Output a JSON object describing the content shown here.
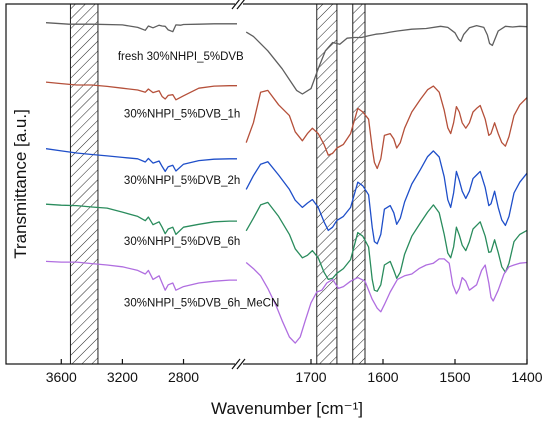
{
  "chart_data": {
    "type": "line",
    "xlabel": "Wavenumber [cm⁻¹]",
    "ylabel": "Transmittance [a.u.]",
    "x_axis_reversed": true,
    "broken_axis": true,
    "panels": [
      {
        "xlim": [
          3700,
          2450
        ],
        "ticks": [
          3600,
          3200,
          2800
        ]
      },
      {
        "xlim": [
          1800,
          1400
        ],
        "ticks": [
          1700,
          1600,
          1500,
          1400
        ]
      }
    ],
    "ylim": [
      0,
      10
    ],
    "y_ticks_shown": false,
    "hatched_bands": [
      {
        "from": 3540,
        "to": 3360
      },
      {
        "from": 1692,
        "to": 1664
      },
      {
        "from": 1642,
        "to": 1625
      }
    ],
    "series": [
      {
        "name": "fresh 30%NHPI_5%DVB",
        "color": "#5f5f5f",
        "x": [
          3700,
          3550,
          3400,
          3200,
          3100,
          3050,
          3030,
          3000,
          2960,
          2940,
          2920,
          2900,
          2870,
          2850,
          2820,
          2800,
          2700,
          2600,
          2500,
          2450,
          1790,
          1780,
          1760,
          1740,
          1730,
          1720,
          1712,
          1700,
          1690,
          1680,
          1670,
          1660,
          1650,
          1640,
          1630,
          1620,
          1610,
          1600,
          1590,
          1580,
          1560,
          1540,
          1520,
          1510,
          1500,
          1495,
          1492,
          1488,
          1480,
          1470,
          1460,
          1455,
          1452,
          1448,
          1440,
          1430,
          1420,
          1410,
          1400
        ],
        "y": [
          9.48,
          9.44,
          9.44,
          9.42,
          9.35,
          9.27,
          9.39,
          9.34,
          9.41,
          9.39,
          9.38,
          9.28,
          9.23,
          9.42,
          9.41,
          9.43,
          9.44,
          9.45,
          9.45,
          9.45,
          9.22,
          9.1,
          8.7,
          8.2,
          7.9,
          7.6,
          7.5,
          7.65,
          8.2,
          8.7,
          8.93,
          8.88,
          9.05,
          9.07,
          9.07,
          9.12,
          9.16,
          9.18,
          9.22,
          9.25,
          9.3,
          9.32,
          9.38,
          9.35,
          9.2,
          9.02,
          8.96,
          9.15,
          9.34,
          9.4,
          9.35,
          9.14,
          8.9,
          8.85,
          9.25,
          9.38,
          9.36,
          9.38,
          9.37
        ]
      },
      {
        "name": "30%NHPI_5%DVB_1h",
        "color": "#b5503a",
        "x": [
          3700,
          3600,
          3500,
          3400,
          3300,
          3200,
          3100,
          3050,
          3030,
          3000,
          2960,
          2940,
          2920,
          2900,
          2870,
          2850,
          2800,
          2700,
          2600,
          2500,
          2450,
          1790,
          1780,
          1770,
          1760,
          1745,
          1730,
          1722,
          1712,
          1705,
          1698,
          1690,
          1682,
          1676,
          1670,
          1664,
          1655,
          1645,
          1635,
          1628,
          1620,
          1615,
          1612,
          1608,
          1603,
          1598,
          1590,
          1585,
          1581,
          1576,
          1570,
          1560,
          1548,
          1538,
          1530,
          1522,
          1515,
          1510,
          1506,
          1502,
          1498,
          1494,
          1490,
          1485,
          1480,
          1475,
          1470,
          1465,
          1458,
          1453,
          1450,
          1445,
          1440,
          1435,
          1430,
          1425,
          1418,
          1410,
          1400
        ],
        "y": [
          7.83,
          7.79,
          7.75,
          7.75,
          7.71,
          7.66,
          7.61,
          7.55,
          7.64,
          7.54,
          7.59,
          7.43,
          7.36,
          7.46,
          7.48,
          7.34,
          7.45,
          7.66,
          7.72,
          7.73,
          7.73,
          6.15,
          6.7,
          7.55,
          7.6,
          7.2,
          6.9,
          6.45,
          6.2,
          6.4,
          6.55,
          6.4,
          6.1,
          5.8,
          5.85,
          6.0,
          6.1,
          6.4,
          7.1,
          7.0,
          6.8,
          6.0,
          5.6,
          5.43,
          5.7,
          6.35,
          6.4,
          6.25,
          6.0,
          6.15,
          6.55,
          7.0,
          7.35,
          7.62,
          7.72,
          7.55,
          7.05,
          6.56,
          6.4,
          6.7,
          7.15,
          7.0,
          6.7,
          6.55,
          6.7,
          7.0,
          7.1,
          7.18,
          6.8,
          6.35,
          6.4,
          6.7,
          6.4,
          6.15,
          6.05,
          6.32,
          6.9,
          7.2,
          7.4
        ]
      },
      {
        "name": "30%NHPI_5%DVB_2h",
        "color": "#1f4fc9",
        "x": [
          3700,
          3600,
          3500,
          3400,
          3300,
          3200,
          3100,
          3050,
          3030,
          3000,
          2960,
          2940,
          2920,
          2900,
          2870,
          2850,
          2800,
          2700,
          2600,
          2500,
          2450,
          1790,
          1780,
          1770,
          1760,
          1745,
          1730,
          1722,
          1712,
          1705,
          1698,
          1690,
          1682,
          1676,
          1670,
          1664,
          1655,
          1645,
          1635,
          1628,
          1620,
          1615,
          1612,
          1608,
          1603,
          1598,
          1590,
          1585,
          1581,
          1576,
          1570,
          1560,
          1548,
          1538,
          1530,
          1522,
          1515,
          1510,
          1506,
          1502,
          1498,
          1494,
          1490,
          1485,
          1480,
          1475,
          1470,
          1465,
          1458,
          1453,
          1450,
          1445,
          1440,
          1435,
          1430,
          1425,
          1418,
          1410,
          1400
        ],
        "y": [
          5.98,
          5.92,
          5.86,
          5.82,
          5.78,
          5.74,
          5.7,
          5.61,
          5.71,
          5.58,
          5.64,
          5.49,
          5.35,
          5.48,
          5.52,
          5.36,
          5.55,
          5.65,
          5.69,
          5.7,
          5.7,
          4.85,
          5.23,
          5.55,
          5.62,
          5.25,
          4.85,
          4.55,
          4.35,
          4.47,
          4.57,
          4.35,
          3.95,
          3.71,
          3.8,
          3.99,
          4.1,
          4.35,
          5.05,
          4.95,
          4.7,
          3.8,
          3.4,
          3.34,
          3.6,
          4.3,
          4.4,
          4.2,
          3.88,
          4.05,
          4.5,
          5.0,
          5.4,
          5.76,
          5.92,
          5.75,
          5.2,
          4.56,
          4.35,
          4.75,
          5.35,
          5.1,
          4.8,
          4.6,
          4.8,
          5.15,
          5.25,
          5.35,
          4.9,
          4.4,
          4.45,
          4.8,
          4.35,
          4.0,
          3.85,
          4.1,
          4.75,
          5.05,
          5.3
        ]
      },
      {
        "name": "30%NHPI_5%DVB_6h",
        "color": "#2a8c5d",
        "x": [
          3700,
          3600,
          3500,
          3400,
          3300,
          3200,
          3100,
          3050,
          3030,
          3000,
          2960,
          2940,
          2920,
          2900,
          2870,
          2850,
          2800,
          2700,
          2600,
          2500,
          2450,
          1790,
          1780,
          1770,
          1760,
          1745,
          1730,
          1722,
          1712,
          1705,
          1698,
          1690,
          1682,
          1676,
          1670,
          1664,
          1655,
          1645,
          1635,
          1628,
          1620,
          1615,
          1612,
          1608,
          1603,
          1598,
          1590,
          1585,
          1581,
          1576,
          1570,
          1560,
          1548,
          1538,
          1530,
          1522,
          1515,
          1510,
          1506,
          1502,
          1498,
          1494,
          1490,
          1485,
          1480,
          1475,
          1470,
          1465,
          1458,
          1453,
          1450,
          1445,
          1440,
          1435,
          1430,
          1425,
          1418,
          1410,
          1400
        ],
        "y": [
          4.44,
          4.41,
          4.4,
          4.36,
          4.33,
          4.22,
          4.1,
          3.98,
          4.08,
          3.87,
          3.95,
          3.8,
          3.62,
          3.75,
          3.8,
          3.6,
          3.8,
          3.88,
          3.95,
          3.97,
          3.97,
          3.7,
          4.05,
          4.42,
          4.49,
          4.1,
          3.6,
          3.2,
          2.95,
          3.02,
          3.15,
          2.95,
          2.55,
          2.35,
          2.38,
          2.52,
          2.65,
          2.9,
          3.65,
          3.55,
          3.25,
          2.35,
          2.05,
          2.02,
          2.2,
          2.75,
          2.85,
          2.6,
          2.38,
          2.55,
          3.05,
          3.55,
          3.92,
          4.22,
          4.42,
          4.2,
          3.6,
          3.08,
          2.95,
          3.25,
          3.8,
          3.58,
          3.3,
          3.15,
          3.4,
          3.75,
          3.85,
          3.95,
          3.55,
          3.1,
          3.12,
          3.45,
          3.1,
          2.7,
          2.55,
          2.8,
          3.4,
          3.6,
          3.71
        ]
      },
      {
        "name": "30%NHPI_5%DVB_6h_MeCN",
        "color": "#b06ee0",
        "x": [
          3700,
          3600,
          3500,
          3400,
          3300,
          3200,
          3100,
          3050,
          3030,
          3000,
          2960,
          2940,
          2920,
          2900,
          2870,
          2850,
          2800,
          2700,
          2600,
          2500,
          2450,
          1790,
          1780,
          1770,
          1760,
          1748,
          1740,
          1730,
          1722,
          1715,
          1708,
          1700,
          1692,
          1685,
          1678,
          1670,
          1662,
          1655,
          1645,
          1635,
          1625,
          1615,
          1608,
          1603,
          1598,
          1590,
          1580,
          1570,
          1560,
          1550,
          1540,
          1530,
          1522,
          1515,
          1508,
          1503,
          1498,
          1494,
          1490,
          1485,
          1480,
          1470,
          1463,
          1458,
          1453,
          1450,
          1447,
          1440,
          1432,
          1425,
          1418,
          1410,
          1400
        ],
        "y": [
          2.85,
          2.83,
          2.83,
          2.79,
          2.75,
          2.7,
          2.6,
          2.5,
          2.6,
          2.35,
          2.45,
          2.25,
          2.05,
          2.2,
          2.25,
          2.05,
          2.15,
          2.25,
          2.3,
          2.33,
          2.33,
          2.82,
          2.65,
          2.45,
          2.1,
          1.6,
          1.2,
          0.75,
          0.58,
          0.75,
          1.2,
          1.7,
          2.0,
          2.05,
          2.25,
          2.35,
          2.1,
          2.15,
          2.3,
          2.4,
          2.3,
          1.8,
          1.55,
          1.45,
          1.65,
          2.0,
          2.35,
          2.45,
          2.5,
          2.65,
          2.75,
          2.8,
          2.92,
          2.92,
          2.8,
          2.2,
          1.95,
          2.1,
          2.4,
          2.3,
          2.05,
          2.2,
          2.6,
          2.75,
          2.25,
          1.85,
          1.75,
          2.05,
          2.5,
          2.7,
          2.75,
          2.8,
          2.82
        ]
      }
    ],
    "labels": [
      {
        "text": "fresh 30%NHPI_5%DVB",
        "anchor_x": 3230,
        "anchor_y": 8.45
      },
      {
        "text": "30%NHPI_5%DVB_1h",
        "anchor_x": 3190,
        "anchor_y": 6.85
      },
      {
        "text": "30%NHPI_5%DVB_2h",
        "anchor_x": 3190,
        "anchor_y": 5.0
      },
      {
        "text": "30%NHPI_5%DVB_6h",
        "anchor_x": 3190,
        "anchor_y": 3.3
      },
      {
        "text": "30%NHPI_5%DVB_6h_MeCN",
        "anchor_x": 3190,
        "anchor_y": 1.6
      }
    ]
  }
}
